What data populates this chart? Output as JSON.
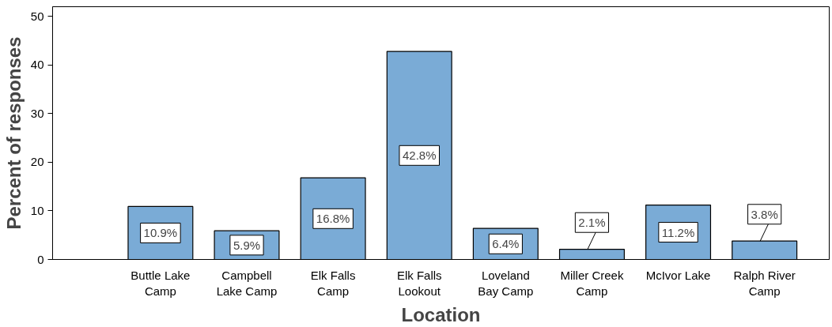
{
  "chart_data": {
    "type": "bar",
    "xlabel": "Location",
    "ylabel": "Percent of responses",
    "categories": [
      "Buttle Lake\nCamp",
      "Campbell\nLake Camp",
      "Elk Falls\nCamp",
      "Elk Falls\nLookout",
      "Loveland\nBay Camp",
      "Miller Creek\nCamp",
      "McIvor Lake",
      "Ralph River\nCamp"
    ],
    "values": [
      10.9,
      5.9,
      16.8,
      42.8,
      6.4,
      2.1,
      11.2,
      3.8
    ],
    "value_labels": [
      "10.9%",
      "5.9%",
      "16.8%",
      "42.8%",
      "6.4%",
      "2.1%",
      "11.2%",
      "3.8%"
    ],
    "color": "#7aabd6",
    "ylim": [
      0,
      52
    ],
    "yticks": [
      0,
      10,
      20,
      30,
      40,
      50
    ],
    "grid": false
  }
}
